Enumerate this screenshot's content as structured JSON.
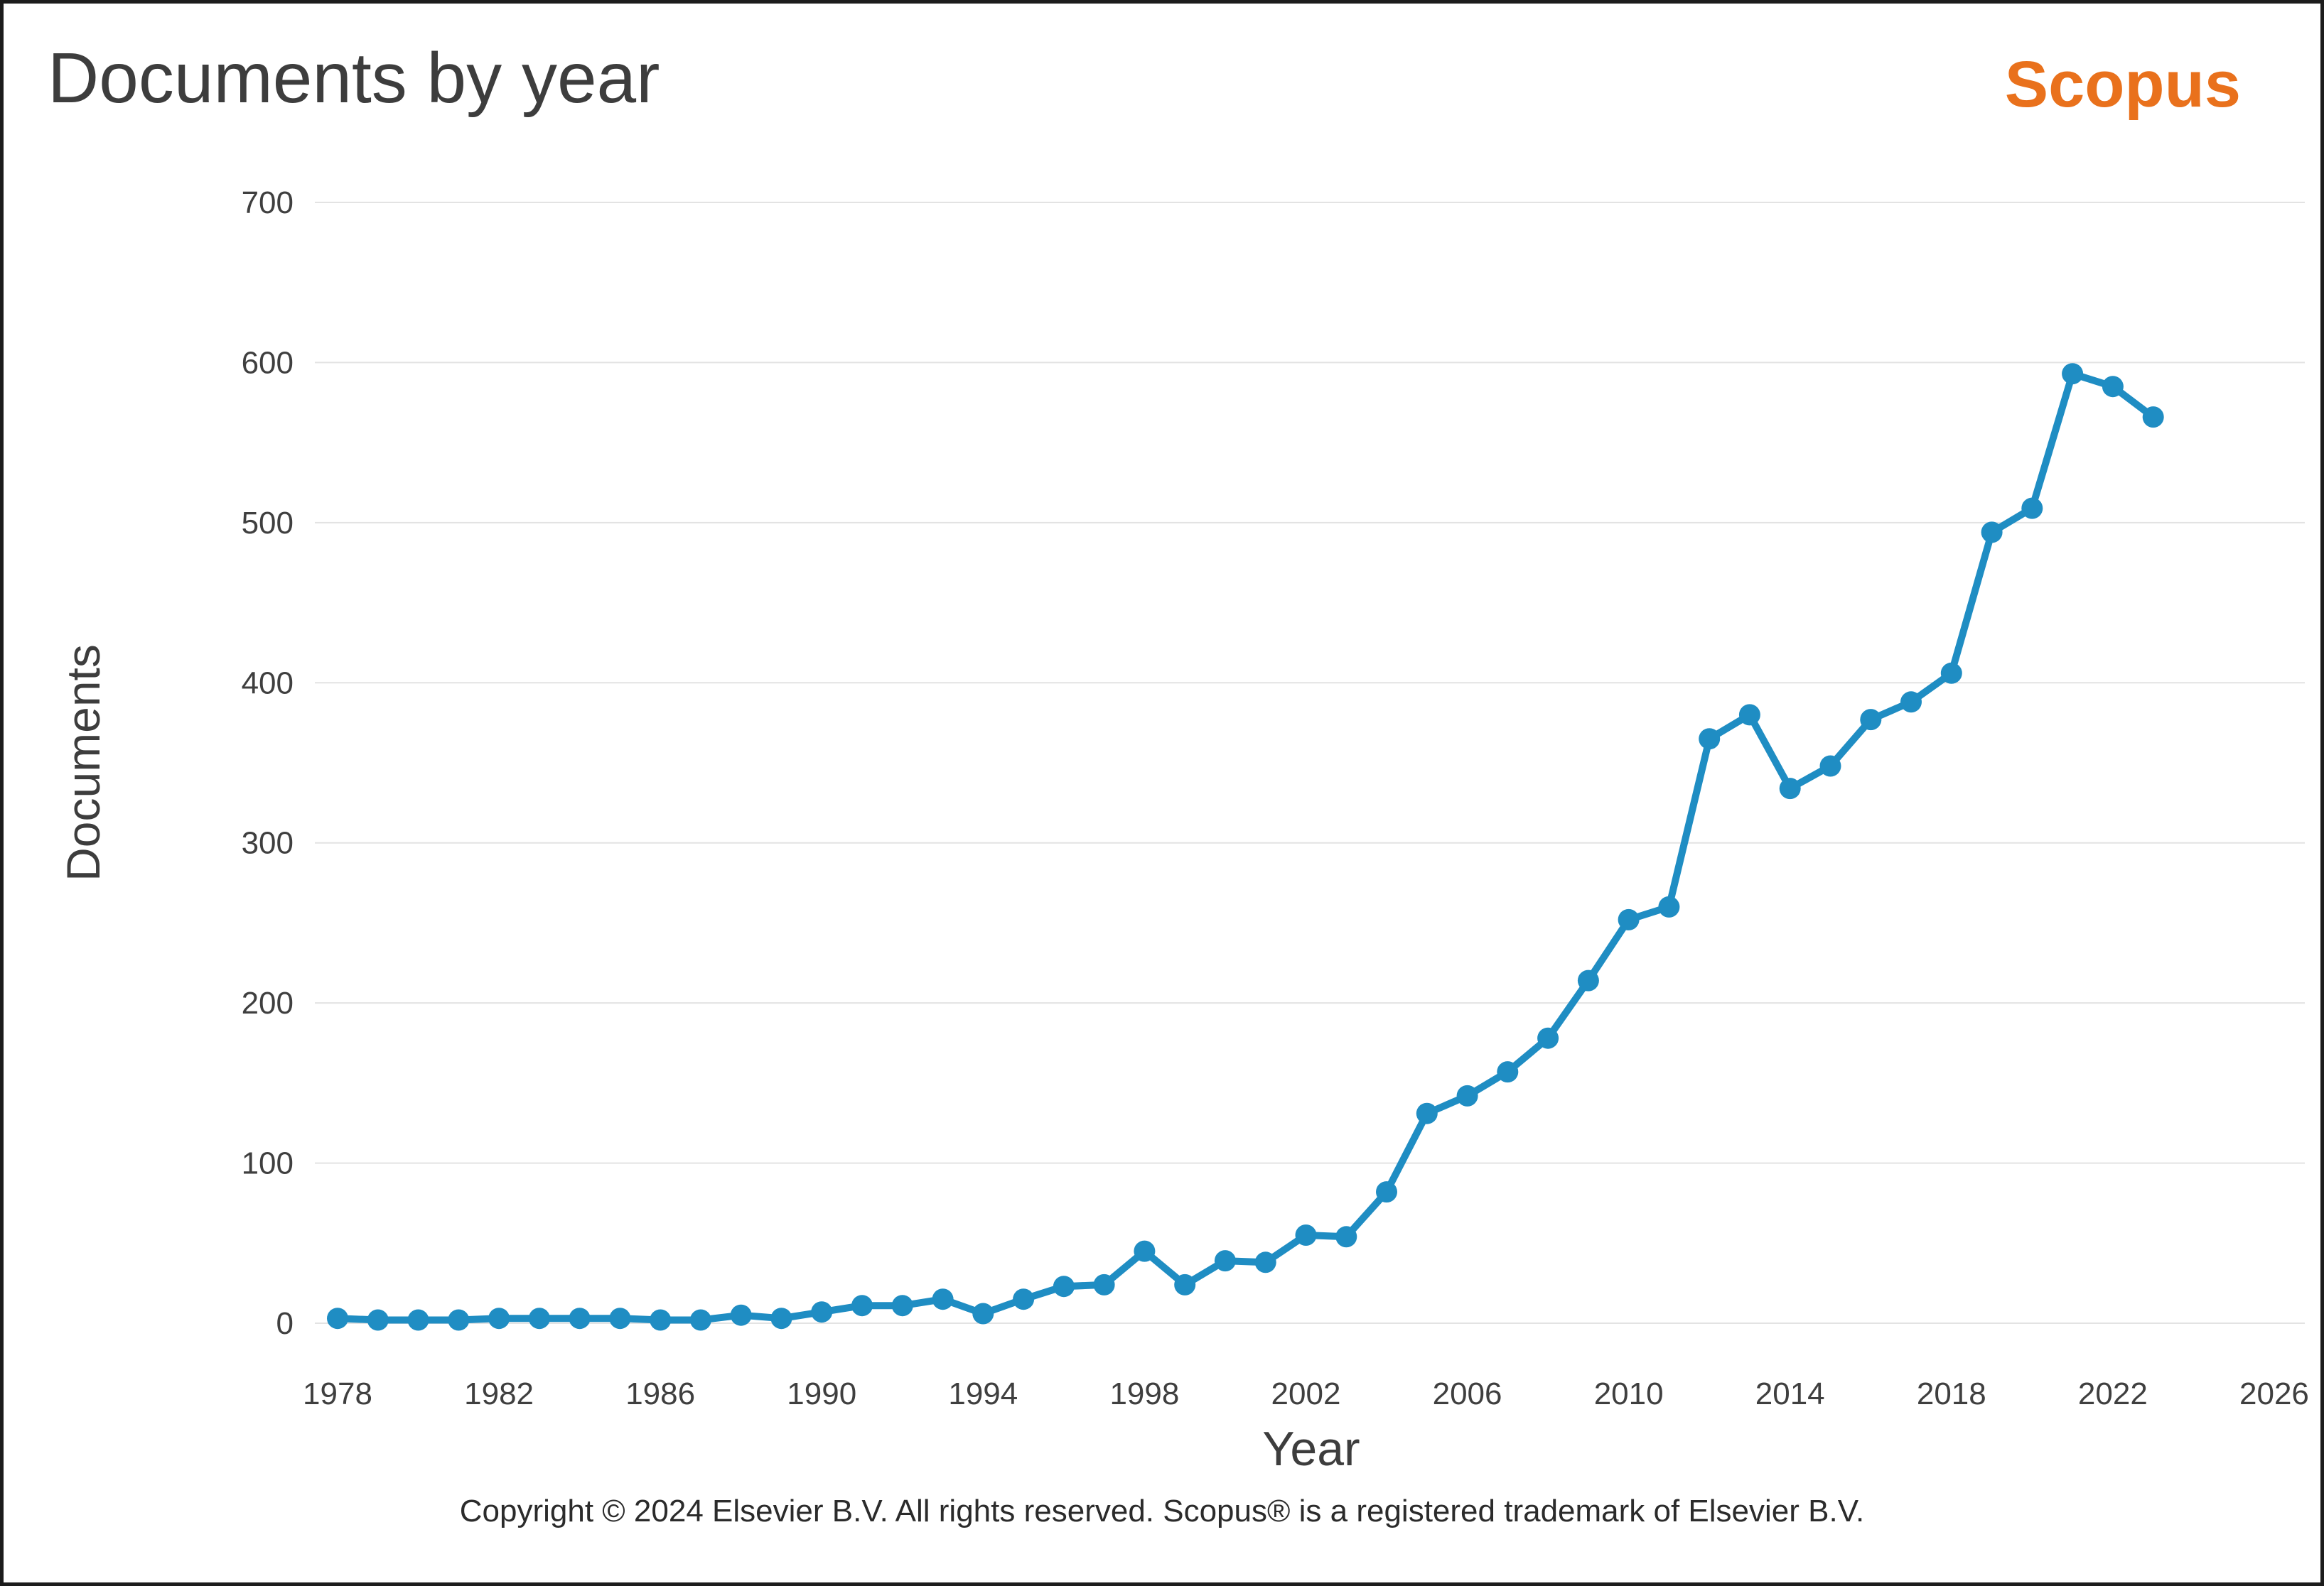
{
  "header": {
    "title": "Documents by year",
    "brand": "Scopus"
  },
  "footer": {
    "copyright": "Copyright © 2024 Elsevier B.V. All rights reserved. Scopus® is a registered trademark of Elsevier B.V."
  },
  "colors": {
    "line": "#1f8dc3",
    "brand_orange": "#e9711c",
    "grid": "#e3e3e3",
    "tick_text": "#3f3f3f",
    "title_text": "#3d3d3d"
  },
  "chart_data": {
    "type": "line",
    "title": "Documents by year",
    "xlabel": "Year",
    "ylabel": "Documents",
    "x": [
      1978,
      1979,
      1980,
      1981,
      1982,
      1983,
      1984,
      1985,
      1986,
      1987,
      1988,
      1989,
      1990,
      1991,
      1992,
      1993,
      1994,
      1995,
      1996,
      1997,
      1998,
      1999,
      2000,
      2001,
      2002,
      2003,
      2004,
      2005,
      2006,
      2007,
      2008,
      2009,
      2010,
      2011,
      2012,
      2013,
      2014,
      2015,
      2016,
      2017,
      2018,
      2019,
      2020,
      2021,
      2022,
      2023
    ],
    "values": [
      3,
      2,
      2,
      2,
      3,
      3,
      3,
      3,
      2,
      2,
      5,
      3,
      7,
      11,
      11,
      15,
      6,
      15,
      23,
      24,
      45,
      24,
      39,
      38,
      55,
      54,
      82,
      131,
      142,
      157,
      178,
      214,
      252,
      260,
      365,
      380,
      334,
      348,
      377,
      388,
      406,
      494,
      509,
      593,
      585,
      566
    ],
    "xticks": [
      1978,
      1982,
      1986,
      1990,
      1994,
      1998,
      2002,
      2006,
      2010,
      2014,
      2018,
      2022,
      2026
    ],
    "yticks": [
      0,
      100,
      200,
      300,
      400,
      500,
      600,
      700
    ],
    "xlim": [
      1977.5,
      2026.8
    ],
    "ylim": [
      0,
      700
    ],
    "grid": "horizontal",
    "legend": "none",
    "marker": "circle"
  }
}
